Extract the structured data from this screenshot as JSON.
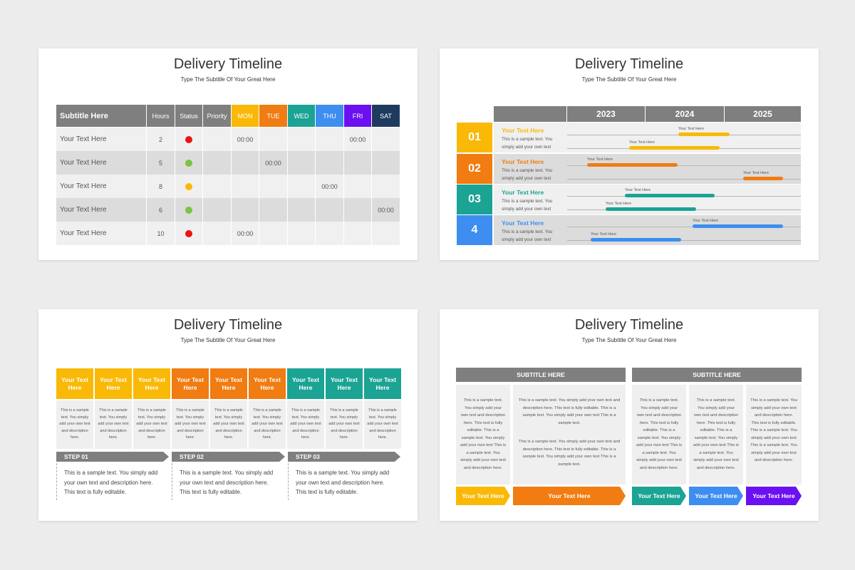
{
  "slides": [
    {
      "title": "Delivery Timeline",
      "subtitle": "Type The Subtitle Of Your Great Here",
      "table": {
        "header": [
          {
            "text": "Subtitle Here",
            "color": "#7f7f7f"
          },
          {
            "text": "Hours",
            "color": "#7f7f7f"
          },
          {
            "text": "Status",
            "color": "#7f7f7f"
          },
          {
            "text": "Priority",
            "color": "#7f7f7f"
          },
          {
            "text": "MON",
            "color": "#f9b906"
          },
          {
            "text": "TUE",
            "color": "#f07c12"
          },
          {
            "text": "WED",
            "color": "#1ba394"
          },
          {
            "text": "THU",
            "color": "#3d8ef0"
          },
          {
            "text": "FRI",
            "color": "#6b10f0"
          },
          {
            "text": "SAT",
            "color": "#1f3a5f"
          }
        ],
        "rows": [
          {
            "label": "Your Text Here",
            "hours": 2,
            "status_color": "#ee1111",
            "cells": [
              "00:00",
              null,
              null,
              null,
              "00:00",
              null
            ]
          },
          {
            "label": "Your Text Here",
            "hours": 5,
            "status_color": "#7cc242",
            "cells": [
              null,
              "00:00",
              null,
              null,
              null,
              null
            ]
          },
          {
            "label": "Your Text Here",
            "hours": 8,
            "status_color": "#f9b906",
            "cells": [
              null,
              null,
              null,
              "00:00",
              null,
              null
            ]
          },
          {
            "label": "Your Text Here",
            "hours": 6,
            "status_color": "#7cc242",
            "cells": [
              null,
              null,
              null,
              null,
              null,
              "00:00"
            ]
          },
          {
            "label": "Your Text Here",
            "hours": 10,
            "status_color": "#ee1111",
            "cells": [
              "00:00",
              null,
              null,
              null,
              null,
              null
            ]
          }
        ]
      }
    },
    {
      "title": "Delivery Timeline",
      "subtitle": "Type The Subtitle Of Your Great Here",
      "years": [
        "2023",
        "2024",
        "2025"
      ],
      "rows": [
        {
          "number": "01",
          "color": "#f9b906",
          "title": "Your Text Here",
          "text": "This is a sample text. You simply add your own text",
          "bars": [
            "Your Text Here",
            "Your Text Here"
          ]
        },
        {
          "number": "02",
          "color": "#f07c12",
          "title": "Your Text Here",
          "text": "This is a sample text. You simply add your own text",
          "bars": [
            "Your Text Here",
            "Your Text Here"
          ]
        },
        {
          "number": "03",
          "color": "#1ba394",
          "title": "Your Text Here",
          "text": "This is a sample text. You simply add your own text",
          "bars": [
            "Your Text Here",
            "Your Text Here"
          ]
        },
        {
          "number": "4",
          "color": "#3d8ef0",
          "title": "Your Text Here",
          "text": "This is a sample text. You simply add your own text",
          "bars": [
            "Your Text Here",
            "Your Text Here"
          ]
        }
      ]
    },
    {
      "title": "Delivery Timeline",
      "subtitle": "Type The Subtitle Of Your Great Here",
      "columns": [
        {
          "title": "Your Text Here",
          "color": "#f9b906",
          "text": "This is a sample text. You simply add your own text and description here."
        },
        {
          "title": "Your Text Here",
          "color": "#f9b906",
          "text": "This is a sample text. You simply add your own text and description here."
        },
        {
          "title": "Your Text Here",
          "color": "#f9b906",
          "text": "This is a sample text. You simply add your own text and description here."
        },
        {
          "title": "Your Text Here",
          "color": "#f07c12",
          "text": "This is a sample text. You simply add your own text and description here."
        },
        {
          "title": "Your Text Here",
          "color": "#f07c12",
          "text": "This is a sample text. You simply add your own text and description here."
        },
        {
          "title": "Your Text Here",
          "color": "#f07c12",
          "text": "This is a sample text. You simply add your own text and description here."
        },
        {
          "title": "Your Text Here",
          "color": "#1ba394",
          "text": "This is a sample text. You simply add your own text and description here."
        },
        {
          "title": "Your Text Here",
          "color": "#1ba394",
          "text": "This is a sample text. You simply add your own text and description here."
        },
        {
          "title": "Your Text Here",
          "color": "#1ba394",
          "text": "This is a sample text. You simply add your own text and description here."
        }
      ],
      "steps": [
        {
          "label": "STEP 01",
          "text": "This is a sample text. You simply add your own text and description here. This text is fully editable."
        },
        {
          "label": "STEP 02",
          "text": "This is a sample text. You simply add your own text and description here. This text is fully editable."
        },
        {
          "label": "STEP 03",
          "text": "This is a sample text. You simply add your own text and description here. This text is fully editable."
        }
      ]
    },
    {
      "title": "Delivery Timeline",
      "subtitle": "Type The Subtitle Of Your Great Here",
      "groups": [
        "SUBTITLE HERE",
        "SUBTITLE HERE"
      ],
      "columns": [
        {
          "paragraphs": [
            "This is a sample text. You simply add your own text and description here. This text is fully editable. This is a sample text. You simply add your own text This is a sample text. You simply add your own text and description here."
          ]
        },
        {
          "paragraphs": [
            "This is a sample text. You simply add your own text and description here. This text is fully editable. This is a sample text. You simply add your own text This is a sample text.",
            "This is a sample text. You simply add your own text and description here. This text is fully editable. This is a sample text. You simply add your own text This is a sample text."
          ]
        },
        {
          "paragraphs": [
            "This is a sample text. You simply add your own text and description here. This text is fully editable. This is a sample text. You simply add your own text This is a sample text. You simply add your own text and description here."
          ]
        },
        {
          "paragraphs": [
            "This is a sample text. You simply add your own text and description here. This text is fully editable. This is a sample text. You simply add your own text This is a sample text. You simply add your own text and description here."
          ]
        },
        {
          "paragraphs": [
            "This is a sample text. You simply add your own text and description here. This text is fully editable. This is a sample text. You simply add your own text This is a sample text. You simply add your own text and description here."
          ]
        }
      ],
      "arrows": [
        {
          "label": "Your Text Here",
          "color": "#f9b906"
        },
        {
          "label": "Your Text Here",
          "color": "#f07c12"
        },
        {
          "label": "Your Text Here",
          "color": "#1ba394"
        },
        {
          "label": "Your Text Here",
          "color": "#3d8ef0"
        },
        {
          "label": "Your Text Here",
          "color": "#6b10f0"
        }
      ]
    }
  ]
}
